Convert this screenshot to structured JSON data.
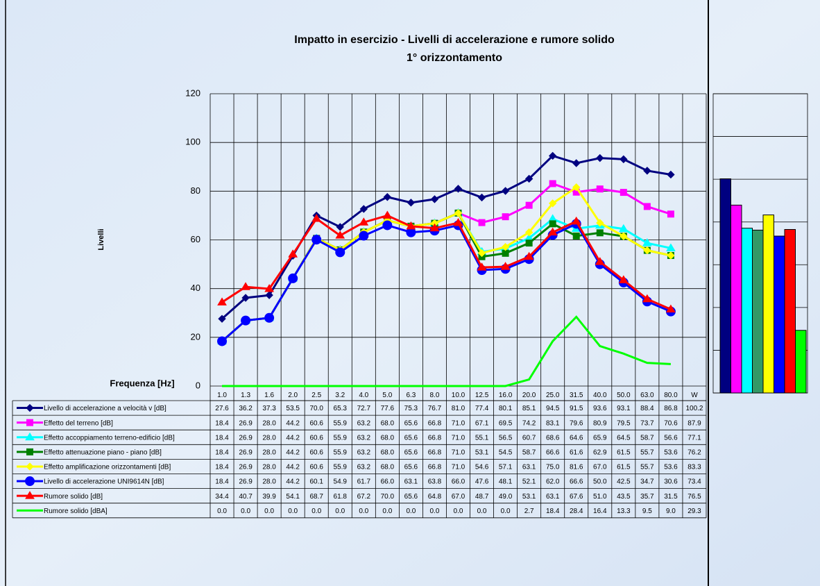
{
  "chart_data": [
    {
      "type": "line",
      "title": "Impatto in esercizio - Livelli di accelerazione e rumore solido",
      "subtitle": "1° orizzontamento",
      "y_label": "Livelli",
      "x_label": "Frequenza [Hz]",
      "categories": [
        "1.0",
        "1.3",
        "1.6",
        "2.0",
        "2.5",
        "3.2",
        "4.0",
        "5.0",
        "6.3",
        "8.0",
        "10.0",
        "12.5",
        "16.0",
        "20.0",
        "25.0",
        "31.5",
        "40.0",
        "50.0",
        "63.0",
        "80.0"
      ],
      "ylim": [
        0,
        120
      ],
      "yticks": [
        0,
        20,
        40,
        60,
        80,
        100,
        120
      ],
      "grid": true,
      "series": [
        {
          "name": "Livello di accelerazione a velocità v [dB]",
          "color": "#000080",
          "marker": "diamond",
          "values": [
            27.6,
            36.2,
            37.3,
            53.5,
            70.0,
            65.3,
            72.7,
            77.6,
            75.3,
            76.7,
            81.0,
            77.4,
            80.1,
            85.1,
            94.5,
            91.5,
            93.6,
            93.1,
            88.4,
            86.8
          ],
          "value_labels": [
            "27.6",
            "36.2",
            "37.3",
            "53.5",
            "70.0",
            "65.3",
            "72.7",
            "77.6",
            "75.3",
            "76.7",
            "81.0",
            "77.4",
            "80.1",
            "85.1",
            "94.5",
            "91.5",
            "93.6",
            "93.1",
            "88.4",
            "86.8"
          ]
        },
        {
          "name": "Effetto del terreno [dB]",
          "color": "#ff00ff",
          "marker": "square",
          "values": [
            18.4,
            26.9,
            28.0,
            44.2,
            60.6,
            55.9,
            63.2,
            68.0,
            65.6,
            66.8,
            71.0,
            67.1,
            69.5,
            74.2,
            83.1,
            79.6,
            80.9,
            79.5,
            73.7,
            70.6
          ],
          "value_labels": [
            "18.4",
            "26.9",
            "28.0",
            "44.2",
            "60.6",
            "55.9",
            "63.2",
            "68.0",
            "65.6",
            "66.8",
            "71.0",
            "67.1",
            "69.5",
            "74.2",
            "83.1",
            "79.6",
            "80.9",
            "79.5",
            "73.7",
            "70.6"
          ]
        },
        {
          "name": "Effetto accoppiamento terreno-edificio [dB]",
          "color": "#00ffff",
          "marker": "triangle",
          "values": [
            18.4,
            26.9,
            28.0,
            44.2,
            60.6,
            55.9,
            63.2,
            68.0,
            65.6,
            66.8,
            71.0,
            55.1,
            56.5,
            60.7,
            68.6,
            64.6,
            65.9,
            64.5,
            58.7,
            56.6
          ],
          "value_labels": [
            "18.4",
            "26.9",
            "28.0",
            "44.2",
            "60.6",
            "55.9",
            "63.2",
            "68.0",
            "65.6",
            "66.8",
            "71.0",
            "55.1",
            "56.5",
            "60.7",
            "68.6",
            "64.6",
            "65.9",
            "64.5",
            "58.7",
            "56.6"
          ]
        },
        {
          "name": "Effetto attenuazione piano - piano [dB]",
          "color": "#008000",
          "marker": "square",
          "values": [
            18.4,
            26.9,
            28.0,
            44.2,
            60.6,
            55.9,
            63.2,
            68.0,
            65.6,
            66.8,
            71.0,
            53.1,
            54.5,
            58.7,
            66.6,
            61.6,
            62.9,
            61.5,
            55.7,
            53.6
          ],
          "value_labels": [
            "18.4",
            "26.9",
            "28.0",
            "44.2",
            "60.6",
            "55.9",
            "63.2",
            "68.0",
            "65.6",
            "66.8",
            "71.0",
            "53.1",
            "54.5",
            "58.7",
            "66.6",
            "61.6",
            "62.9",
            "61.5",
            "55.7",
            "53.6"
          ]
        },
        {
          "name": "Effetto amplificazione orizzontamenti [dB]",
          "color": "#ffff00",
          "marker": "diamond",
          "values": [
            18.4,
            26.9,
            28.0,
            44.2,
            60.6,
            55.9,
            63.2,
            68.0,
            65.6,
            66.8,
            71.0,
            54.6,
            57.1,
            63.1,
            75.0,
            81.6,
            67.0,
            61.5,
            55.7,
            53.6
          ],
          "value_labels": [
            "18.4",
            "26.9",
            "28.0",
            "44.2",
            "60.6",
            "55.9",
            "63.2",
            "68.0",
            "65.6",
            "66.8",
            "71.0",
            "54.6",
            "57.1",
            "63.1",
            "75.0",
            "81.6",
            "67.0",
            "61.5",
            "55.7",
            "53.6"
          ]
        },
        {
          "name": "Livello di accelerazione UNI9614N [dB]",
          "color": "#0000ff",
          "marker": "circle",
          "values": [
            18.4,
            26.9,
            28.0,
            44.2,
            60.1,
            54.9,
            61.7,
            66.0,
            63.1,
            63.8,
            66.0,
            47.6,
            48.1,
            52.1,
            62.0,
            66.6,
            50.0,
            42.5,
            34.7,
            30.6
          ],
          "value_labels": [
            "18.4",
            "26.9",
            "28.0",
            "44.2",
            "60.1",
            "54.9",
            "61.7",
            "66.0",
            "63.1",
            "63.8",
            "66.0",
            "47.6",
            "48.1",
            "52.1",
            "62.0",
            "66.6",
            "50.0",
            "42.5",
            "34.7",
            "30.6"
          ]
        },
        {
          "name": "Rumore solido [dB]",
          "color": "#ff0000",
          "marker": "triangle",
          "values": [
            34.4,
            40.7,
            39.9,
            54.1,
            68.7,
            61.8,
            67.2,
            70.0,
            65.6,
            64.8,
            67.0,
            48.7,
            49.0,
            53.1,
            63.1,
            67.6,
            51.0,
            43.5,
            35.7,
            31.5
          ],
          "value_labels": [
            "34.4",
            "40.7",
            "39.9",
            "54.1",
            "68.7",
            "61.8",
            "67.2",
            "70.0",
            "65.6",
            "64.8",
            "67.0",
            "48.7",
            "49.0",
            "53.1",
            "63.1",
            "67.6",
            "51.0",
            "43.5",
            "35.7",
            "31.5"
          ]
        },
        {
          "name": "Rumore solido [dBA]",
          "color": "#00ff00",
          "marker": "none",
          "values": [
            0.0,
            0.0,
            0.0,
            0.0,
            0.0,
            0.0,
            0.0,
            0.0,
            0.0,
            0.0,
            0.0,
            0.0,
            0.0,
            2.7,
            18.4,
            28.4,
            16.4,
            13.3,
            9.5,
            9.0
          ],
          "value_labels": [
            "0.0",
            "0.0",
            "0.0",
            "0.0",
            "0.0",
            "0.0",
            "0.0",
            "0.0",
            "0.0",
            "0.0",
            "0.0",
            "0.0",
            "0.0",
            "2.7",
            "18.4",
            "28.4",
            "16.4",
            "13.3",
            "9.5",
            "9.0"
          ]
        }
      ]
    },
    {
      "type": "bar",
      "label": "W",
      "values": [
        100.2,
        87.9,
        77.1,
        76.2,
        83.3,
        73.4,
        76.5,
        29.3
      ],
      "colors": [
        "#000080",
        "#ff00ff",
        "#00ffff",
        "#339966",
        "#ffff00",
        "#0000ff",
        "#ff0000",
        "#00ff00"
      ],
      "ylim": [
        0,
        140
      ],
      "yticks": [
        0,
        20,
        40,
        60,
        80,
        100,
        120,
        140
      ],
      "grid": true
    }
  ]
}
